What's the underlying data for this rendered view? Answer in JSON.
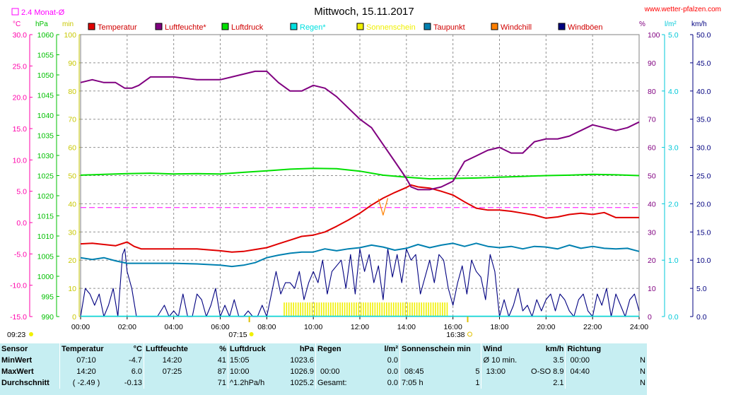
{
  "title": "Mittwoch, 15.11.2017",
  "website": "www.wetter-pfalzen.com",
  "avg_legend": "2.4 Monat-Ø",
  "unit_headers": {
    "temp": "°C",
    "hpa": "hPa",
    "min": "min",
    "pct": "%",
    "lm2": "l/m²",
    "kmh": "km/h"
  },
  "legend": [
    {
      "label": "Temperatur",
      "color": "#e00000"
    },
    {
      "label": "Luftfeuchte*",
      "color": "#800080"
    },
    {
      "label": "Luftdruck",
      "color": "#00e000"
    },
    {
      "label": "Regen*",
      "color": "#00e0e0"
    },
    {
      "label": "Sonnenschein",
      "color": "#f0f000"
    },
    {
      "label": "Taupunkt",
      "color": "#0080b0"
    },
    {
      "label": "Windchill",
      "color": "#ff8000"
    },
    {
      "label": "Windböen",
      "color": "#000080"
    }
  ],
  "axes": {
    "temp_ticks": [
      "30.0",
      "25.0",
      "20.0",
      "15.0",
      "10.0",
      "5.0",
      "0.0",
      "-5.0",
      "-10.0",
      "-15.0"
    ],
    "hpa_ticks": [
      "1060",
      "1055",
      "1050",
      "1045",
      "1040",
      "1035",
      "1030",
      "1025",
      "1020",
      "1015",
      "1010",
      "1005",
      "1000",
      "995",
      "990"
    ],
    "min_ticks": [
      "100",
      "90",
      "80",
      "70",
      "60",
      "50",
      "40",
      "30",
      "20",
      "10",
      "0"
    ],
    "pct_ticks": [
      "100",
      "90",
      "80",
      "70",
      "60",
      "50",
      "40",
      "30",
      "20",
      "10",
      "0"
    ],
    "lm2_ticks": [
      "5.0",
      "4.0",
      "3.0",
      "2.0",
      "1.0",
      "0.0"
    ],
    "kmh_ticks": [
      "50.0",
      "45.0",
      "40.0",
      "35.0",
      "30.0",
      "25.0",
      "20.0",
      "15.0",
      "10.0",
      "5.0",
      "0.0"
    ],
    "x_ticks": [
      "00:00",
      "02:00",
      "04:00",
      "06:00",
      "08:00",
      "10:00",
      "12:00",
      "14:00",
      "16:00",
      "18:00",
      "20:00",
      "22:00",
      "24:00"
    ],
    "sunrise": "07:15",
    "sunset": "16:38",
    "sunshine_label": "09:23"
  },
  "chart_data": {
    "type": "line",
    "x_unit": "hour",
    "xlim": [
      0,
      24
    ],
    "avg_temp_line": 2.4,
    "series": [
      {
        "name": "Temperatur",
        "unit": "°C",
        "ylim": [
          -15,
          30
        ],
        "color": "#e00000",
        "x": [
          0,
          0.5,
          1,
          1.5,
          2,
          2.3,
          2.6,
          3,
          4,
          5,
          6,
          6.5,
          7,
          7.5,
          8,
          8.5,
          9,
          9.5,
          10,
          10.5,
          11,
          11.5,
          12,
          12.5,
          13,
          13.5,
          14,
          14.2,
          14.5,
          15,
          15.5,
          16,
          16.5,
          17,
          17.5,
          18,
          18.5,
          19,
          19.5,
          20,
          20.5,
          21,
          21.5,
          22,
          22.5,
          23,
          23.5,
          24
        ],
        "y": [
          -3.4,
          -3.3,
          -3.5,
          -3.7,
          -3.1,
          -3.8,
          -4.2,
          -4.2,
          -4.2,
          -4.2,
          -4.5,
          -4.7,
          -4.6,
          -4.3,
          -4.0,
          -3.4,
          -2.8,
          -2.2,
          -2.0,
          -1.5,
          -0.6,
          0.4,
          1.5,
          2.8,
          3.9,
          4.8,
          5.6,
          6.0,
          5.7,
          5.5,
          5.0,
          4.4,
          3.3,
          2.3,
          2.0,
          2.0,
          1.8,
          1.5,
          1.2,
          0.7,
          0.9,
          1.3,
          1.5,
          1.3,
          1.6,
          0.8,
          0.8,
          0.8
        ]
      },
      {
        "name": "Luftfeuchte*",
        "unit": "%",
        "ylim": [
          0,
          100
        ],
        "color": "#800080",
        "x": [
          0,
          0.5,
          1,
          1.5,
          1.9,
          2.2,
          2.5,
          3,
          4,
          5,
          6,
          6.5,
          7,
          7.5,
          8,
          8.5,
          9,
          9.5,
          10,
          10.5,
          11,
          11.5,
          12,
          12.5,
          13,
          13.5,
          14,
          14.2,
          14.5,
          15,
          15.5,
          16,
          16.5,
          17,
          17.5,
          18,
          18.5,
          19,
          19.5,
          20,
          20.5,
          21,
          21.5,
          22,
          22.5,
          23,
          23.5,
          24
        ],
        "y": [
          83,
          84,
          83,
          83,
          81,
          81,
          82,
          85,
          85,
          84,
          84,
          85,
          86,
          87,
          87,
          83,
          80,
          80,
          82,
          81,
          78,
          74,
          70,
          67,
          61,
          55,
          49,
          46,
          45,
          45,
          46,
          48,
          55,
          57,
          59,
          60,
          58,
          58,
          62,
          63,
          63,
          64,
          66,
          68,
          67,
          66,
          67,
          69
        ]
      },
      {
        "name": "Luftdruck",
        "unit": "hPa",
        "ylim": [
          990,
          1060
        ],
        "color": "#00e000",
        "x": [
          0,
          1,
          2,
          3,
          4,
          5,
          6,
          7,
          8,
          9,
          10,
          11,
          12,
          13,
          14,
          15,
          16,
          17,
          18,
          19,
          20,
          21,
          22,
          23,
          24
        ],
        "y": [
          1025.1,
          1025.3,
          1025.5,
          1025.6,
          1025.4,
          1025.5,
          1025.4,
          1025.8,
          1026.2,
          1026.6,
          1026.8,
          1026.7,
          1026.1,
          1025.1,
          1024.6,
          1024.2,
          1024.3,
          1024.4,
          1024.6,
          1024.8,
          1025.0,
          1025.1,
          1025.3,
          1025.2,
          1025.0
        ]
      },
      {
        "name": "Taupunkt",
        "unit": "°C",
        "ylim": [
          -15,
          30
        ],
        "color": "#0080b0",
        "x": [
          0,
          0.5,
          1,
          1.5,
          2,
          3,
          4,
          5,
          6,
          6.5,
          7,
          7.5,
          8,
          8.5,
          9,
          9.5,
          10,
          10.5,
          11,
          11.5,
          12,
          12.5,
          13,
          13.5,
          14,
          14.5,
          15,
          15.5,
          16,
          16.5,
          17,
          17.5,
          18,
          18.5,
          19,
          19.5,
          20,
          20.5,
          21,
          21.5,
          22,
          22.5,
          23,
          23.5,
          24
        ],
        "y": [
          -5.6,
          -5.9,
          -5.6,
          -6.1,
          -6.5,
          -6.5,
          -6.5,
          -6.6,
          -6.8,
          -7.0,
          -6.8,
          -6.4,
          -5.6,
          -5.2,
          -4.9,
          -4.7,
          -4.7,
          -4.2,
          -4.5,
          -4.2,
          -4.0,
          -3.6,
          -3.9,
          -4.4,
          -4.1,
          -3.5,
          -4.0,
          -3.6,
          -3.3,
          -3.8,
          -3.3,
          -3.8,
          -4.0,
          -3.8,
          -4.2,
          -3.8,
          -3.9,
          -4.2,
          -3.6,
          -4.1,
          -3.8,
          -4.1,
          -4.2,
          -4.1,
          -4.6
        ]
      },
      {
        "name": "Windchill",
        "unit": "°C",
        "ylim": [
          -15,
          30
        ],
        "color": "#ff8000",
        "x": [
          12.8,
          13,
          13.2
        ],
        "y": [
          3.8,
          1.2,
          3.9
        ]
      },
      {
        "name": "Windböen",
        "unit": "km/h",
        "ylim": [
          0,
          50
        ],
        "color": "#000080",
        "x": [
          0,
          0.2,
          0.4,
          0.6,
          0.8,
          1.0,
          1.2,
          1.4,
          1.6,
          1.8,
          1.9,
          2.0,
          2.2,
          2.4,
          2.6,
          2.8,
          3.0,
          3.3,
          3.6,
          3.8,
          4.0,
          4.2,
          4.4,
          4.6,
          4.8,
          5.0,
          5.2,
          5.4,
          5.6,
          5.8,
          6.0,
          6.2,
          6.4,
          6.6,
          6.8,
          7.0,
          7.2,
          7.4,
          7.6,
          7.8,
          8.0,
          8.2,
          8.4,
          8.6,
          8.8,
          9.0,
          9.2,
          9.4,
          9.6,
          9.8,
          10.0,
          10.2,
          10.4,
          10.6,
          10.8,
          11.0,
          11.2,
          11.4,
          11.6,
          11.8,
          12.0,
          12.2,
          12.4,
          12.6,
          12.8,
          13.0,
          13.2,
          13.4,
          13.6,
          13.8,
          14.0,
          14.2,
          14.4,
          14.6,
          14.8,
          15.0,
          15.2,
          15.4,
          15.6,
          15.8,
          16.0,
          16.2,
          16.4,
          16.6,
          16.8,
          17.0,
          17.2,
          17.4,
          17.6,
          17.8,
          18.0,
          18.2,
          18.4,
          18.6,
          18.8,
          19.0,
          19.2,
          19.4,
          19.6,
          19.8,
          20.0,
          20.2,
          20.4,
          20.6,
          20.8,
          21.0,
          21.2,
          21.4,
          21.6,
          21.8,
          22.0,
          22.2,
          22.4,
          22.6,
          22.8,
          23.0,
          23.2,
          23.4,
          23.6,
          23.8,
          24.0
        ],
        "y": [
          0,
          5,
          4,
          2,
          4,
          0,
          2,
          5,
          0,
          11,
          12,
          8,
          5,
          0,
          0,
          0,
          0,
          0,
          2,
          0,
          1,
          0,
          4,
          0,
          0,
          4,
          3,
          0,
          2,
          5,
          0,
          2,
          0,
          3,
          0,
          0,
          1,
          0,
          0,
          2,
          0,
          4,
          8,
          4,
          6,
          6,
          5,
          8,
          3,
          6,
          8,
          6,
          10,
          4,
          8,
          9,
          10,
          5,
          11,
          4,
          12,
          8,
          11,
          6,
          9,
          3,
          12,
          7,
          11,
          6,
          12,
          10,
          11,
          4,
          7,
          10,
          6,
          11,
          10,
          5,
          2,
          6,
          9,
          4,
          10,
          8,
          7,
          3,
          11,
          8,
          0,
          3,
          0,
          2,
          5,
          1,
          2,
          0,
          3,
          1,
          3,
          4,
          1,
          4,
          3,
          1,
          0,
          3,
          4,
          1,
          0,
          4,
          2,
          5,
          0,
          4,
          2,
          0,
          3,
          4,
          1
        ]
      },
      {
        "name": "Sonnenschein",
        "unit": "min",
        "ylim": [
          0,
          100
        ],
        "color": "#f0f000",
        "start": 8.75,
        "end": 15.83,
        "y": 5
      }
    ]
  },
  "summary": {
    "headers": [
      "Sensor",
      "Temperatur",
      "°C",
      "Luftfeuchte",
      "%",
      "Luftdruck",
      "hPa",
      "Regen",
      "l/m²",
      "Sonnenschein min",
      "Wind",
      "km/h",
      "Richtung"
    ],
    "min_label": "MinWert",
    "max_label": "MaxWert",
    "avg_label": "Durchschnitt",
    "temp_min_time": "07:10",
    "temp_min": "-4.7",
    "temp_max_time": "14:20",
    "temp_max": "6.0",
    "temp_avg_note": "( -2.49 )",
    "temp_avg": "-0.13",
    "hum_min_time": "14:20",
    "hum_min": "41",
    "hum_max_time": "07:25",
    "hum_max": "87",
    "hum_avg": "71",
    "press_min_time": "15:05",
    "press_min": "1023.6",
    "press_max_time": "10:00",
    "press_max": "1026.9",
    "press_trend": "^1.2hPa/h",
    "press_avg": "1025.2",
    "rain_min": "0.0",
    "rain_max_time": "00:00",
    "rain_max": "0.0",
    "rain_total_label": "Gesamt:",
    "rain_total": "0.0",
    "sun_max_time": "08:45",
    "sun_max": "5",
    "sun_total": "7:05 h",
    "sun_avg": "1",
    "wind_min_label": "Ø 10 min.",
    "wind_min": "3.5",
    "wind_max_time": "13:00",
    "wind_max": "O-SO 8.9",
    "wind_avg": "2.1",
    "dir_min_time": "00:00",
    "dir_min": "N",
    "dir_max_time": "04:40",
    "dir_max": "N",
    "dir_avg": "N"
  }
}
